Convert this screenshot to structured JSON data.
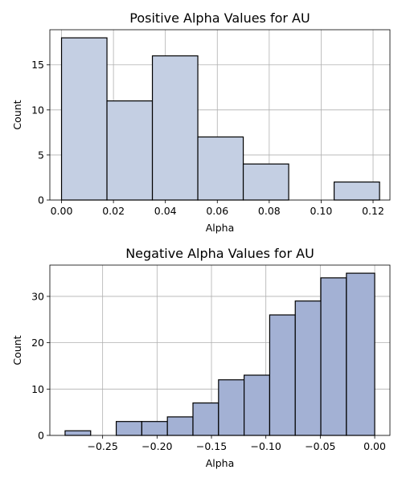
{
  "colors": {
    "positive_bar": "#c4cfe3",
    "negative_bar": "#a3b1d4"
  },
  "chart_data": [
    {
      "type": "bar",
      "title": "Positive Alpha Values for AU",
      "xlabel": "Alpha",
      "ylabel": "Count",
      "xlim": [
        -0.0045,
        0.1265
      ],
      "ylim": [
        0,
        18.9
      ],
      "grid": true,
      "xticks": [
        0.0,
        0.02,
        0.04,
        0.06,
        0.08,
        0.1,
        0.12
      ],
      "xtick_labels": [
        "0.00",
        "0.02",
        "0.04",
        "0.06",
        "0.08",
        "0.10",
        "0.12"
      ],
      "yticks": [
        0,
        5,
        10,
        15
      ],
      "ytick_labels": [
        "0",
        "5",
        "10",
        "15"
      ],
      "bin_edges": [
        0.0,
        0.0175,
        0.035,
        0.0525,
        0.07,
        0.0875,
        0.105,
        0.1225
      ],
      "values": [
        18,
        11,
        16,
        7,
        4,
        0,
        2
      ]
    },
    {
      "type": "bar",
      "title": "Negative Alpha Values for AU",
      "xlabel": "Alpha",
      "ylabel": "Count",
      "xlim": [
        -0.2985,
        0.014
      ],
      "ylim": [
        0,
        36.75
      ],
      "grid": true,
      "xticks": [
        -0.25,
        -0.2,
        -0.15,
        -0.1,
        -0.05,
        0.0
      ],
      "xtick_labels": [
        "−0.25",
        "−0.20",
        "−0.15",
        "−0.10",
        "−0.05",
        "0.00"
      ],
      "yticks": [
        0,
        10,
        20,
        30
      ],
      "ytick_labels": [
        "0",
        "10",
        "20",
        "30"
      ],
      "bin_edges": [
        -0.2845,
        -0.261,
        -0.2375,
        -0.214,
        -0.1905,
        -0.167,
        -0.1435,
        -0.12,
        -0.0965,
        -0.073,
        -0.0495,
        -0.026,
        0.0
      ],
      "values": [
        1,
        0,
        3,
        3,
        4,
        7,
        12,
        13,
        26,
        29,
        34,
        35
      ]
    }
  ]
}
